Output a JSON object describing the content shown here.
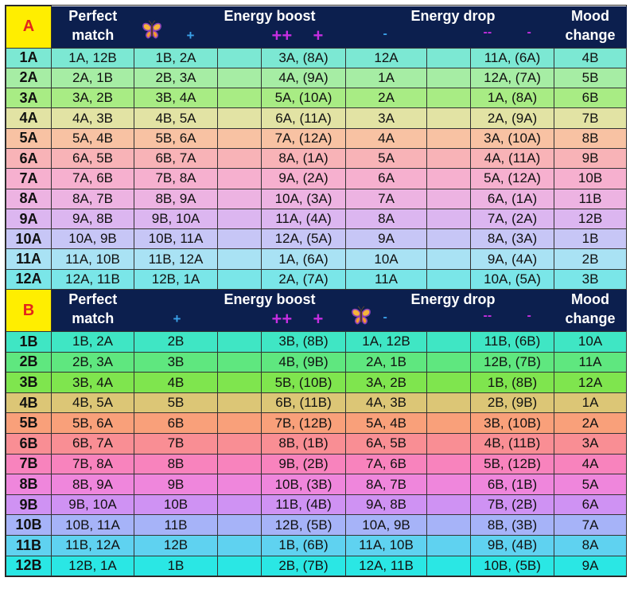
{
  "tables": [
    {
      "key": "A",
      "headers": {
        "perfect_line1": "Perfect",
        "perfect_line2": "match",
        "energy_boost": "Energy boost",
        "energy_drop": "Energy drop",
        "mood_line1": "Mood",
        "mood_line2": "change",
        "boost_plus": "+",
        "boost_plusplus": "++",
        "boost_plus2": "+",
        "drop_minus": "-",
        "drop_minusminus": "--",
        "drop_minus2": "-"
      },
      "butterfly_icon": "butterfly-icon",
      "rows": [
        {
          "key": "1A",
          "perfect": "1A, 12B",
          "boost1": "1B, 2A",
          "boost2": "",
          "boost3": "3A, (8A)",
          "drop1": "12A",
          "drop2": "",
          "drop3": "11A, (6A)",
          "mood": "4B",
          "color": "#7ce8d3"
        },
        {
          "key": "2A",
          "perfect": "2A, 1B",
          "boost1": "2B, 3A",
          "boost2": "",
          "boost3": "4A, (9A)",
          "drop1": "1A",
          "drop2": "",
          "drop3": "12A, (7A)",
          "mood": "5B",
          "color": "#a6eda4"
        },
        {
          "key": "3A",
          "perfect": "3A, 2B",
          "boost1": "3B, 4A",
          "boost2": "",
          "boost3": "5A, (10A)",
          "drop1": "2A",
          "drop2": "",
          "drop3": "1A, (8A)",
          "mood": "6B",
          "color": "#a8ec84"
        },
        {
          "key": "4A",
          "perfect": "4A, 3B",
          "boost1": "4B, 5A",
          "boost2": "",
          "boost3": "6A, (11A)",
          "drop1": "3A",
          "drop2": "",
          "drop3": "2A, (9A)",
          "mood": "7B",
          "color": "#e2e3a4"
        },
        {
          "key": "5A",
          "perfect": "5A, 4B",
          "boost1": "5B, 6A",
          "boost2": "",
          "boost3": "7A, (12A)",
          "drop1": "4A",
          "drop2": "",
          "drop3": "3A, (10A)",
          "mood": "8B",
          "color": "#f8c2a3"
        },
        {
          "key": "6A",
          "perfect": "6A, 5B",
          "boost1": "6B, 7A",
          "boost2": "",
          "boost3": "8A, (1A)",
          "drop1": "5A",
          "drop2": "",
          "drop3": "4A, (11A)",
          "mood": "9B",
          "color": "#f8b3b7"
        },
        {
          "key": "7A",
          "perfect": "7A, 6B",
          "boost1": "7B, 8A",
          "boost2": "",
          "boost3": "9A, (2A)",
          "drop1": "6A",
          "drop2": "",
          "drop3": "5A, (12A)",
          "mood": "10B",
          "color": "#f6b0cf"
        },
        {
          "key": "8A",
          "perfect": "8A, 7B",
          "boost1": "8B, 9A",
          "boost2": "",
          "boost3": "10A, (3A)",
          "drop1": "7A",
          "drop2": "",
          "drop3": "6A, (1A)",
          "mood": "11B",
          "color": "#edb3e2"
        },
        {
          "key": "9A",
          "perfect": "9A, 8B",
          "boost1": "9B, 10A",
          "boost2": "",
          "boost3": "11A, (4A)",
          "drop1": "8A",
          "drop2": "",
          "drop3": "7A, (2A)",
          "mood": "12B",
          "color": "#dcb6f0"
        },
        {
          "key": "10A",
          "perfect": "10A, 9B",
          "boost1": "10B, 11A",
          "boost2": "",
          "boost3": "12A, (5A)",
          "drop1": "9A",
          "drop2": "",
          "drop3": "8A, (3A)",
          "mood": "1B",
          "color": "#c7c6f6"
        },
        {
          "key": "11A",
          "perfect": "11A, 10B",
          "boost1": "11B, 12A",
          "boost2": "",
          "boost3": "1A, (6A)",
          "drop1": "10A",
          "drop2": "",
          "drop3": "9A, (4A)",
          "mood": "2B",
          "color": "#a9e2f4"
        },
        {
          "key": "12A",
          "perfect": "12A, 11B",
          "boost1": "12B, 1A",
          "boost2": "",
          "boost3": "2A, (7A)",
          "drop1": "11A",
          "drop2": "",
          "drop3": "10A, (5A)",
          "mood": "3B",
          "color": "#7ae6e8"
        }
      ]
    },
    {
      "key": "B",
      "headers": {
        "perfect_line1": "Perfect",
        "perfect_line2": "match",
        "energy_boost": "Energy boost",
        "energy_drop": "Energy drop",
        "mood_line1": "Mood",
        "mood_line2": "change",
        "boost_plus": "+",
        "boost_plusplus": "++",
        "boost_plus2": "+",
        "drop_minus": "-",
        "drop_minusminus": "--",
        "drop_minus2": "-"
      },
      "butterfly_icon": "butterfly-icon",
      "rows": [
        {
          "key": "1B",
          "perfect": "1B, 2A",
          "boost1": "2B",
          "boost2": "",
          "boost3": "3B, (8B)",
          "drop1": "1A, 12B",
          "drop2": "",
          "drop3": "11B, (6B)",
          "mood": "10A",
          "color": "#3fe6c4"
        },
        {
          "key": "2B",
          "perfect": "2B, 3A",
          "boost1": "3B",
          "boost2": "",
          "boost3": "4B, (9B)",
          "drop1": "2A, 1B",
          "drop2": "",
          "drop3": "12B, (7B)",
          "mood": "11A",
          "color": "#5fe77f"
        },
        {
          "key": "3B",
          "perfect": "3B, 4A",
          "boost1": "4B",
          "boost2": "",
          "boost3": "5B, (10B)",
          "drop1": "3A, 2B",
          "drop2": "",
          "drop3": "1B, (8B)",
          "mood": "12A",
          "color": "#7fe54e"
        },
        {
          "key": "4B",
          "perfect": "4B, 5A",
          "boost1": "5B",
          "boost2": "",
          "boost3": "6B, (11B)",
          "drop1": "4A, 3B",
          "drop2": "",
          "drop3": "2B, (9B)",
          "mood": "1A",
          "color": "#dcc676"
        },
        {
          "key": "5B",
          "perfect": "5B, 6A",
          "boost1": "6B",
          "boost2": "",
          "boost3": "7B, (12B)",
          "drop1": "5A, 4B",
          "drop2": "",
          "drop3": "3B, (10B)",
          "mood": "2A",
          "color": "#f9a07a"
        },
        {
          "key": "6B",
          "perfect": "6B, 7A",
          "boost1": "7B",
          "boost2": "",
          "boost3": "8B, (1B)",
          "drop1": "6A, 5B",
          "drop2": "",
          "drop3": "4B, (11B)",
          "mood": "3A",
          "color": "#f98e94"
        },
        {
          "key": "7B",
          "perfect": "7B, 8A",
          "boost1": "8B",
          "boost2": "",
          "boost3": "9B, (2B)",
          "drop1": "7A, 6B",
          "drop2": "",
          "drop3": "5B, (12B)",
          "mood": "4A",
          "color": "#f883bd"
        },
        {
          "key": "8B",
          "perfect": "8B, 9A",
          "boost1": "9B",
          "boost2": "",
          "boost3": "10B, (3B)",
          "drop1": "8A, 7B",
          "drop2": "",
          "drop3": "6B, (1B)",
          "mood": "5A",
          "color": "#ef86dc"
        },
        {
          "key": "9B",
          "perfect": "9B, 10A",
          "boost1": "10B",
          "boost2": "",
          "boost3": "11B, (4B)",
          "drop1": "9A, 8B",
          "drop2": "",
          "drop3": "7B, (2B)",
          "mood": "6A",
          "color": "#cf92f3"
        },
        {
          "key": "10B",
          "perfect": "10B, 11A",
          "boost1": "11B",
          "boost2": "",
          "boost3": "12B, (5B)",
          "drop1": "10A, 9B",
          "drop2": "",
          "drop3": "8B, (3B)",
          "mood": "7A",
          "color": "#a6b3f8"
        },
        {
          "key": "11B",
          "perfect": "11B, 12A",
          "boost1": "12B",
          "boost2": "",
          "boost3": "1B, (6B)",
          "drop1": "11A, 10B",
          "drop2": "",
          "drop3": "9B, (4B)",
          "mood": "8A",
          "color": "#5fd2f0"
        },
        {
          "key": "12B",
          "perfect": "12B, 1A",
          "boost1": "1B",
          "boost2": "",
          "boost3": "2B, (7B)",
          "drop1": "12A, 11B",
          "drop2": "",
          "drop3": "10B, (5B)",
          "mood": "9A",
          "color": "#2ae7e4"
        }
      ]
    }
  ],
  "colors": {
    "header_bg": "#0c1f4e",
    "corner_bg": "#ffee00",
    "corner_text": "#e3261b",
    "plus_minus_blue": "#3aa0e8",
    "plus_minus_purple": "#c62ee0"
  }
}
